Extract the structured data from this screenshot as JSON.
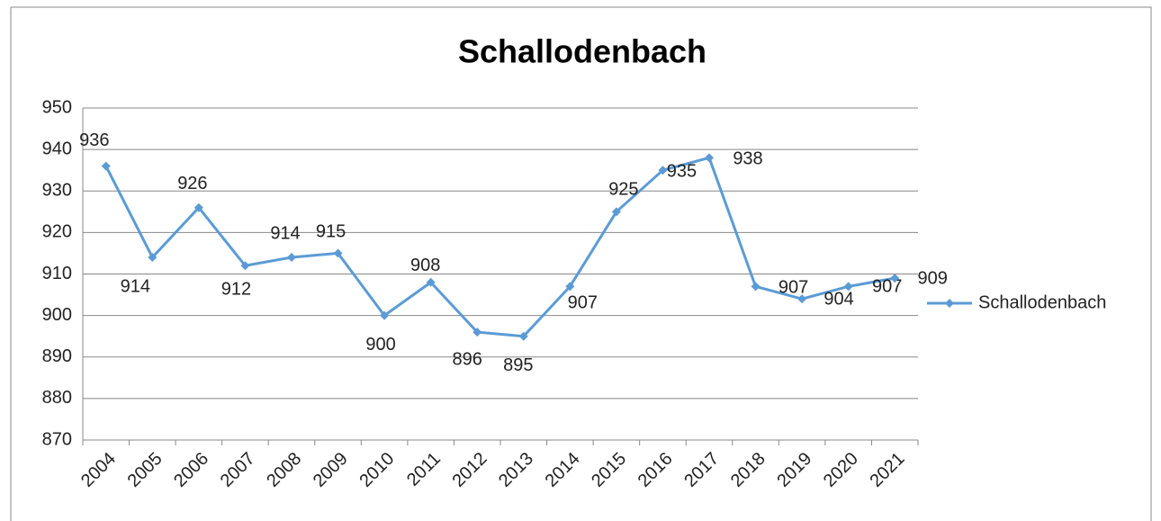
{
  "chart_data": {
    "type": "line",
    "title": "Schallodenbach",
    "categories": [
      "2004",
      "2005",
      "2006",
      "2007",
      "2008",
      "2009",
      "2010",
      "2011",
      "2012",
      "2013",
      "2014",
      "2015",
      "2016",
      "2017",
      "2018",
      "2019",
      "2020",
      "2021"
    ],
    "series": [
      {
        "name": "Schallodenbach",
        "color": "#5b9bd5",
        "values": [
          936,
          914,
          926,
          912,
          914,
          915,
          900,
          908,
          896,
          895,
          907,
          925,
          935,
          938,
          907,
          904,
          907,
          909
        ]
      }
    ],
    "ylim": [
      870,
      950
    ],
    "yticks": [
      870,
      880,
      890,
      900,
      910,
      920,
      930,
      940,
      950
    ],
    "grid": true,
    "legend": "right"
  }
}
